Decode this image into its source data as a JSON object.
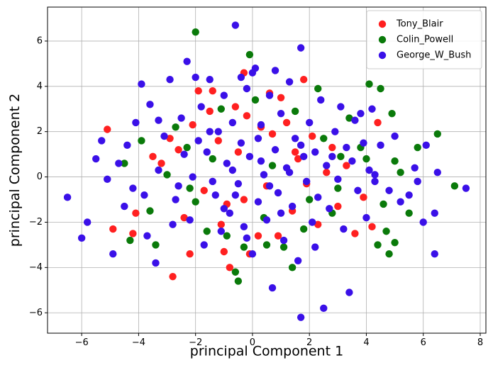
{
  "chart_data": {
    "type": "scatter",
    "title": "",
    "xlabel": "principal Component 1",
    "ylabel": "principal Component 2",
    "xlim": [
      -7.2,
      8.2
    ],
    "ylim": [
      -6.9,
      7.5
    ],
    "xticks": [
      -6,
      -4,
      -2,
      0,
      2,
      4,
      6,
      8
    ],
    "yticks": [
      -6,
      -4,
      -2,
      0,
      2,
      4,
      6
    ],
    "grid": true,
    "legend_position": "upper right",
    "series": [
      {
        "name": "Tony_Blair",
        "color": "#ff2020",
        "points": [
          [
            -5.1,
            2.1
          ],
          [
            -4.9,
            -2.3
          ],
          [
            -4.2,
            -2.5
          ],
          [
            -4.1,
            -1.6
          ],
          [
            -3.5,
            0.9
          ],
          [
            -3.2,
            0.6
          ],
          [
            -2.9,
            1.7
          ],
          [
            -2.8,
            -4.4
          ],
          [
            -2.6,
            1.2
          ],
          [
            -2.4,
            -1.8
          ],
          [
            -2.2,
            -3.4
          ],
          [
            -2.1,
            2.3
          ],
          [
            -1.9,
            3.8
          ],
          [
            -1.7,
            -0.6
          ],
          [
            -1.5,
            2.9
          ],
          [
            -1.2,
            1.6
          ],
          [
            -1.1,
            -2.1
          ],
          [
            -1.4,
            3.8
          ],
          [
            -0.9,
            -1.2
          ],
          [
            -0.8,
            -4.0
          ],
          [
            -0.5,
            1.1
          ],
          [
            -0.3,
            -1.0
          ],
          [
            -0.2,
            2.7
          ],
          [
            -0.1,
            -3.4
          ],
          [
            0.3,
            2.2
          ],
          [
            0.5,
            -0.4
          ],
          [
            0.7,
            1.9
          ],
          [
            0.9,
            -2.6
          ],
          [
            1.0,
            3.5
          ],
          [
            1.2,
            2.4
          ],
          [
            1.4,
            -1.5
          ],
          [
            1.6,
            0.8
          ],
          [
            1.8,
            4.3
          ],
          [
            1.9,
            -0.3
          ],
          [
            2.1,
            1.8
          ],
          [
            2.3,
            -2.1
          ],
          [
            2.6,
            0.2
          ],
          [
            2.8,
            1.3
          ],
          [
            3.0,
            -1.3
          ],
          [
            3.3,
            0.5
          ],
          [
            3.6,
            -2.5
          ],
          [
            3.9,
            -0.9
          ],
          [
            4.2,
            -2.2
          ],
          [
            4.4,
            2.4
          ],
          [
            0.6,
            3.7
          ],
          [
            -0.3,
            4.6
          ],
          [
            -1.0,
            -3.3
          ],
          [
            0.2,
            -2.6
          ],
          [
            -0.6,
            3.1
          ],
          [
            1.5,
            1.1
          ]
        ]
      },
      {
        "name": "Colin_Powell",
        "color": "#0a7a0a",
        "points": [
          [
            -4.5,
            0.6
          ],
          [
            -4.3,
            -2.8
          ],
          [
            -3.9,
            1.6
          ],
          [
            -3.6,
            -1.5
          ],
          [
            -3.4,
            -3.0
          ],
          [
            -3.0,
            0.1
          ],
          [
            -2.7,
            2.2
          ],
          [
            -2.3,
            1.3
          ],
          [
            -2.0,
            -1.1
          ],
          [
            -2.0,
            6.4
          ],
          [
            -1.6,
            -2.4
          ],
          [
            -1.4,
            0.8
          ],
          [
            -1.1,
            3.0
          ],
          [
            -0.9,
            -2.6
          ],
          [
            -0.6,
            -4.2
          ],
          [
            -0.5,
            -4.6
          ],
          [
            -0.3,
            -3.1
          ],
          [
            -0.1,
            5.4
          ],
          [
            0.1,
            3.4
          ],
          [
            0.4,
            -1.8
          ],
          [
            0.7,
            0.5
          ],
          [
            1.1,
            -3.1
          ],
          [
            1.5,
            2.9
          ],
          [
            1.8,
            -2.3
          ],
          [
            2.0,
            -1.0
          ],
          [
            2.3,
            3.9
          ],
          [
            2.5,
            1.7
          ],
          [
            2.8,
            -1.6
          ],
          [
            3.1,
            0.9
          ],
          [
            3.4,
            2.6
          ],
          [
            3.8,
            1.3
          ],
          [
            4.0,
            0.8
          ],
          [
            4.1,
            4.1
          ],
          [
            4.4,
            -3.0
          ],
          [
            4.6,
            -1.2
          ],
          [
            4.7,
            -2.4
          ],
          [
            4.9,
            2.8
          ],
          [
            5.0,
            0.7
          ],
          [
            5.2,
            0.2
          ],
          [
            5.5,
            -1.6
          ],
          [
            5.8,
            1.3
          ],
          [
            6.5,
            1.9
          ],
          [
            7.1,
            -0.4
          ],
          [
            4.8,
            -3.4
          ],
          [
            5.0,
            -2.9
          ],
          [
            4.5,
            3.9
          ],
          [
            3.0,
            -0.5
          ],
          [
            1.4,
            -4.0
          ],
          [
            0.5,
            -3.0
          ],
          [
            -2.2,
            -0.5
          ]
        ]
      },
      {
        "name": "George_W_Bush",
        "color": "#3a10e8",
        "points": [
          [
            -6.5,
            -0.9
          ],
          [
            -6.0,
            -2.7
          ],
          [
            -5.8,
            -2.0
          ],
          [
            -5.5,
            0.8
          ],
          [
            -5.3,
            1.6
          ],
          [
            -5.1,
            -0.1
          ],
          [
            -4.9,
            -3.4
          ],
          [
            -4.7,
            0.6
          ],
          [
            -4.4,
            1.4
          ],
          [
            -4.2,
            -0.5
          ],
          [
            -4.1,
            2.4
          ],
          [
            -3.9,
            4.1
          ],
          [
            -3.7,
            -2.6
          ],
          [
            -3.6,
            3.2
          ],
          [
            -3.4,
            -3.8
          ],
          [
            -3.3,
            0.3
          ],
          [
            -3.1,
            1.8
          ],
          [
            -2.9,
            4.3
          ],
          [
            -2.7,
            -1.0
          ],
          [
            -2.5,
            2.6
          ],
          [
            -2.3,
            5.1
          ],
          [
            -2.2,
            -1.9
          ],
          [
            -2.1,
            0.0
          ],
          [
            -2.0,
            4.4
          ],
          [
            -1.8,
            3.1
          ],
          [
            -1.7,
            -3.0
          ],
          [
            -1.6,
            1.1
          ],
          [
            -1.5,
            4.3
          ],
          [
            -1.3,
            -0.8
          ],
          [
            -1.2,
            2.0
          ],
          [
            -1.1,
            -2.4
          ],
          [
            -1.0,
            3.6
          ],
          [
            -0.9,
            0.6
          ],
          [
            -0.8,
            -1.6
          ],
          [
            -0.7,
            2.4
          ],
          [
            -0.6,
            6.7
          ],
          [
            -0.5,
            -0.3
          ],
          [
            -0.4,
            1.5
          ],
          [
            -0.3,
            -2.2
          ],
          [
            -0.2,
            3.9
          ],
          [
            -0.1,
            0.9
          ],
          [
            0.0,
            -3.4
          ],
          [
            0.1,
            4.8
          ],
          [
            0.2,
            -1.1
          ],
          [
            0.3,
            2.3
          ],
          [
            0.4,
            0.1
          ],
          [
            0.5,
            -1.9
          ],
          [
            0.6,
            3.6
          ],
          [
            0.7,
            -4.9
          ],
          [
            0.8,
            1.2
          ],
          [
            0.9,
            -0.7
          ],
          [
            1.0,
            2.8
          ],
          [
            1.1,
            -2.8
          ],
          [
            1.2,
            0.4
          ],
          [
            1.3,
            4.2
          ],
          [
            1.4,
            -1.3
          ],
          [
            1.5,
            1.7
          ],
          [
            1.6,
            -3.7
          ],
          [
            1.7,
            5.7
          ],
          [
            1.7,
            -6.2
          ],
          [
            1.8,
            0.9
          ],
          [
            1.9,
            -0.2
          ],
          [
            2.0,
            2.4
          ],
          [
            2.1,
            -2.0
          ],
          [
            2.2,
            1.1
          ],
          [
            2.3,
            -0.9
          ],
          [
            2.4,
            3.4
          ],
          [
            2.5,
            -5.8
          ],
          [
            2.6,
            0.5
          ],
          [
            2.7,
            -1.4
          ],
          [
            2.9,
            2.0
          ],
          [
            3.0,
            -0.1
          ],
          [
            3.1,
            3.1
          ],
          [
            3.2,
            -2.3
          ],
          [
            3.3,
            1.3
          ],
          [
            3.4,
            -5.1
          ],
          [
            3.5,
            0.7
          ],
          [
            3.6,
            2.5
          ],
          [
            3.7,
            -0.6
          ],
          [
            3.8,
            2.8
          ],
          [
            4.0,
            -1.8
          ],
          [
            4.1,
            0.3
          ],
          [
            4.2,
            3.0
          ],
          [
            4.3,
            -0.2
          ],
          [
            4.5,
            1.4
          ],
          [
            4.8,
            -0.6
          ],
          [
            5.0,
            1.8
          ],
          [
            5.2,
            -1.1
          ],
          [
            5.5,
            -0.8
          ],
          [
            5.7,
            0.4
          ],
          [
            6.0,
            -2.0
          ],
          [
            6.1,
            1.4
          ],
          [
            6.4,
            -3.4
          ],
          [
            6.5,
            0.2
          ],
          [
            7.5,
            -0.5
          ],
          [
            -3.3,
            2.5
          ],
          [
            -2.6,
            -0.4
          ],
          [
            -1.9,
            1.6
          ],
          [
            -0.4,
            4.4
          ],
          [
            0.0,
            4.6
          ],
          [
            -1.4,
            -0.2
          ],
          [
            0.6,
            -0.4
          ],
          [
            1.3,
            0.2
          ],
          [
            -0.7,
            0.3
          ],
          [
            0.2,
            1.7
          ],
          [
            -2.4,
            1.0
          ],
          [
            2.8,
            0.9
          ],
          [
            1.0,
            -1.6
          ],
          [
            -1.0,
            -1.4
          ],
          [
            -3.8,
            -0.8
          ],
          [
            3.9,
            1.5
          ],
          [
            -2.8,
            -2.1
          ],
          [
            -0.2,
            -2.7
          ],
          [
            2.2,
            -3.1
          ],
          [
            0.8,
            4.7
          ],
          [
            -1.5,
            2.0
          ],
          [
            1.7,
            1.4
          ],
          [
            -0.6,
            -0.8
          ],
          [
            0.3,
            0.7
          ],
          [
            -4.5,
            -1.3
          ],
          [
            4.3,
            0.1
          ],
          [
            5.8,
            -0.2
          ],
          [
            6.4,
            -1.6
          ]
        ]
      }
    ]
  }
}
